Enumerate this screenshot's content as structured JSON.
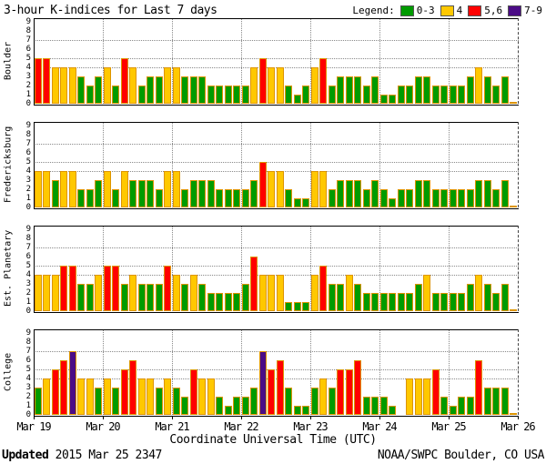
{
  "chart_data": {
    "type": "bar",
    "title": "3-hour K-indices for Last 7 days",
    "legend_label": "Legend:",
    "legend": [
      {
        "label": "0-3",
        "color": "#009b00"
      },
      {
        "label": "4",
        "color": "#ffc800"
      },
      {
        "label": "5,6",
        "color": "#ff0000"
      },
      {
        "label": "7-9",
        "color": "#4b0c86"
      }
    ],
    "bar_outline_color": "#dd9400",
    "xlabel": "Coordinate Universal Time (UTC)",
    "x_tick_labels": [
      "Mar 19",
      "Mar 20",
      "Mar 21",
      "Mar 22",
      "Mar 23",
      "Mar 24",
      "Mar 25",
      "Mar 26"
    ],
    "bars_per_day": 8,
    "ylim": [
      0,
      9
    ],
    "y_ticks": [
      0,
      1,
      2,
      3,
      4,
      5,
      6,
      7,
      8,
      9
    ],
    "grid_y": [
      4,
      5,
      7
    ],
    "grid": "dotted",
    "legend_position": "top-right",
    "color_rule": "0-3 green, 4 yellow, 5-6 red, 7-9 purple, null = missing data gap",
    "stations": [
      {
        "name": "Boulder",
        "values": [
          5,
          5,
          4,
          4,
          4,
          3,
          2,
          3,
          4,
          2,
          5,
          4,
          2,
          3,
          3,
          4,
          4,
          3,
          3,
          3,
          2,
          2,
          2,
          2,
          2,
          4,
          5,
          4,
          4,
          2,
          1,
          2,
          4,
          5,
          2,
          3,
          3,
          3,
          2,
          3,
          1,
          1,
          2,
          2,
          3,
          3,
          2,
          2,
          2,
          2,
          3,
          4,
          3,
          2,
          3,
          0
        ]
      },
      {
        "name": "Fredericksburg",
        "values": [
          4,
          4,
          3,
          4,
          4,
          2,
          2,
          3,
          4,
          2,
          4,
          3,
          3,
          3,
          2,
          4,
          4,
          2,
          3,
          3,
          3,
          2,
          2,
          2,
          2,
          3,
          5,
          4,
          4,
          2,
          1,
          1,
          4,
          4,
          2,
          3,
          3,
          3,
          2,
          3,
          2,
          1,
          2,
          2,
          3,
          3,
          2,
          2,
          2,
          2,
          2,
          3,
          3,
          2,
          3,
          0
        ]
      },
      {
        "name": "Est. Planetary",
        "values": [
          4,
          4,
          4,
          5,
          5,
          3,
          3,
          4,
          5,
          5,
          3,
          4,
          3,
          3,
          3,
          5,
          4,
          3,
          4,
          3,
          2,
          2,
          2,
          2,
          3,
          6,
          4,
          4,
          4,
          1,
          1,
          1,
          4,
          5,
          3,
          3,
          4,
          3,
          2,
          2,
          2,
          2,
          2,
          2,
          3,
          4,
          2,
          2,
          2,
          2,
          3,
          4,
          3,
          2,
          3,
          0
        ]
      },
      {
        "name": "College",
        "values": [
          3,
          4,
          5,
          6,
          7,
          4,
          4,
          3,
          4,
          3,
          5,
          6,
          4,
          4,
          3,
          4,
          3,
          2,
          5,
          4,
          4,
          2,
          1,
          2,
          2,
          3,
          7,
          5,
          6,
          3,
          1,
          1,
          3,
          4,
          3,
          5,
          5,
          6,
          2,
          2,
          2,
          1,
          null,
          4,
          4,
          4,
          5,
          2,
          1,
          2,
          2,
          6,
          3,
          3,
          3,
          0
        ]
      }
    ]
  },
  "footer": {
    "updated_label": "Updated",
    "updated_value": " 2015 Mar 25 2347",
    "source": "NOAA/SWPC Boulder, CO USA"
  }
}
